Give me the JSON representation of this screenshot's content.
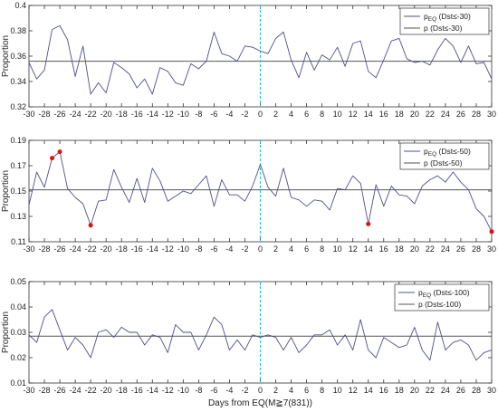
{
  "chart_data": [
    {
      "type": "line",
      "ylabel": "Proportion",
      "xlabel": "",
      "xlim": [
        -30,
        30
      ],
      "ylim": [
        0.32,
        0.4
      ],
      "yticks": [
        0.32,
        0.34,
        0.36,
        0.38,
        0.4
      ],
      "ytick_labels": [
        "0.32",
        "0.34",
        "0.36",
        "0.38",
        "0.4"
      ],
      "xticks": [
        -30,
        -28,
        -26,
        -24,
        -22,
        -20,
        -18,
        -16,
        -14,
        -12,
        -10,
        -8,
        -6,
        -4,
        -2,
        0,
        2,
        4,
        6,
        8,
        10,
        12,
        14,
        16,
        18,
        20,
        22,
        24,
        26,
        28,
        30
      ],
      "xtick_labels": [
        "-30",
        "-28",
        "-26",
        "-24",
        "-22",
        "-20",
        "-18",
        "-16",
        "-14",
        "-12",
        "-10",
        "-8",
        "-6",
        "-4",
        "-2",
        "0",
        "2",
        "4",
        "6",
        "8",
        "10",
        "12",
        "14",
        "16",
        "18",
        "20",
        "22",
        "24",
        "26",
        "28",
        "30"
      ],
      "legend_position": "top-right",
      "legend": [
        {
          "main": "p",
          "sub": "EQ",
          "rest": " (Dst≤-30)"
        },
        {
          "main": "p",
          "sub": "",
          "rest": " (Dst≤-30)"
        }
      ],
      "baseline": 0.356,
      "vline_x": 0,
      "x": [
        -30,
        -29,
        -28,
        -27,
        -26,
        -25,
        -24,
        -23,
        -22,
        -21,
        -20,
        -19,
        -18,
        -17,
        -16,
        -15,
        -14,
        -13,
        -12,
        -11,
        -10,
        -9,
        -8,
        -7,
        -6,
        -5,
        -4,
        -3,
        -2,
        -1,
        0,
        1,
        2,
        3,
        4,
        5,
        6,
        7,
        8,
        9,
        10,
        11,
        12,
        13,
        14,
        15,
        16,
        17,
        18,
        19,
        20,
        21,
        22,
        23,
        24,
        25,
        26,
        27,
        28,
        29,
        30
      ],
      "series": [
        {
          "values": [
            0.355,
            0.342,
            0.349,
            0.381,
            0.384,
            0.373,
            0.344,
            0.368,
            0.33,
            0.339,
            0.331,
            0.355,
            0.351,
            0.346,
            0.335,
            0.342,
            0.33,
            0.351,
            0.348,
            0.339,
            0.337,
            0.354,
            0.35,
            0.356,
            0.379,
            0.362,
            0.36,
            0.356,
            0.368,
            0.367,
            0.364,
            0.362,
            0.374,
            0.379,
            0.357,
            0.343,
            0.363,
            0.349,
            0.361,
            0.357,
            0.367,
            0.352,
            0.37,
            0.372,
            0.348,
            0.343,
            0.357,
            0.372,
            0.374,
            0.358,
            0.355,
            0.356,
            0.353,
            0.365,
            0.374,
            0.368,
            0.355,
            0.368,
            0.354,
            0.355,
            0.342
          ]
        }
      ],
      "highlight_points": []
    },
    {
      "type": "line",
      "ylabel": "Proportion",
      "xlabel": "",
      "xlim": [
        -30,
        30
      ],
      "ylim": [
        0.11,
        0.19
      ],
      "yticks": [
        0.11,
        0.13,
        0.15,
        0.17,
        0.19
      ],
      "ytick_labels": [
        "0.11",
        "0.13",
        "0.15",
        "0.17",
        "0.19"
      ],
      "xticks": [
        -30,
        -28,
        -26,
        -24,
        -22,
        -20,
        -18,
        -16,
        -14,
        -12,
        -10,
        -8,
        -6,
        -4,
        -2,
        0,
        2,
        4,
        6,
        8,
        10,
        12,
        14,
        16,
        18,
        20,
        22,
        24,
        26,
        28,
        30
      ],
      "xtick_labels": [
        "-30",
        "-28",
        "-26",
        "-24",
        "-22",
        "-20",
        "-18",
        "-16",
        "-14",
        "-12",
        "-10",
        "-8",
        "-6",
        "-4",
        "-2",
        "0",
        "2",
        "4",
        "6",
        "8",
        "10",
        "12",
        "14",
        "16",
        "18",
        "20",
        "22",
        "24",
        "26",
        "28",
        "30"
      ],
      "legend_position": "top-right",
      "legend": [
        {
          "main": "p",
          "sub": "EQ",
          "rest": " (Dst≤-50)"
        },
        {
          "main": "p",
          "sub": "",
          "rest": " (Dst≤-50)"
        }
      ],
      "baseline": 0.151,
      "vline_x": 0,
      "x": [
        -30,
        -29,
        -28,
        -27,
        -26,
        -25,
        -24,
        -23,
        -22,
        -21,
        -20,
        -19,
        -18,
        -17,
        -16,
        -15,
        -14,
        -13,
        -12,
        -11,
        -10,
        -9,
        -8,
        -7,
        -6,
        -5,
        -4,
        -3,
        -2,
        -1,
        0,
        1,
        2,
        3,
        4,
        5,
        6,
        7,
        8,
        9,
        10,
        11,
        12,
        13,
        14,
        15,
        16,
        17,
        18,
        19,
        20,
        21,
        22,
        23,
        24,
        25,
        26,
        27,
        28,
        29,
        30
      ],
      "series": [
        {
          "values": [
            0.139,
            0.165,
            0.153,
            0.176,
            0.181,
            0.152,
            0.145,
            0.14,
            0.123,
            0.142,
            0.143,
            0.167,
            0.153,
            0.141,
            0.16,
            0.141,
            0.168,
            0.158,
            0.142,
            0.146,
            0.15,
            0.148,
            0.155,
            0.162,
            0.138,
            0.159,
            0.147,
            0.147,
            0.142,
            0.154,
            0.171,
            0.153,
            0.146,
            0.168,
            0.145,
            0.143,
            0.138,
            0.143,
            0.142,
            0.135,
            0.152,
            0.151,
            0.162,
            0.156,
            0.124,
            0.155,
            0.138,
            0.154,
            0.147,
            0.146,
            0.14,
            0.154,
            0.159,
            0.162,
            0.157,
            0.165,
            0.157,
            0.151,
            0.136,
            0.13,
            0.118
          ]
        }
      ],
      "highlight_points": [
        [
          -27,
          0.176
        ],
        [
          -26,
          0.181
        ],
        [
          -22,
          0.123
        ],
        [
          14,
          0.124
        ],
        [
          30,
          0.118
        ]
      ]
    },
    {
      "type": "line",
      "ylabel": "Proportion",
      "xlabel": "Days from EQ(M≧7(831))",
      "xlim": [
        -30,
        30
      ],
      "ylim": [
        0.01,
        0.05
      ],
      "yticks": [
        0.01,
        0.02,
        0.03,
        0.04,
        0.05
      ],
      "ytick_labels": [
        "0.01",
        "0.02",
        "0.03",
        "0.04",
        "0.05"
      ],
      "xticks": [
        -30,
        -28,
        -26,
        -24,
        -22,
        -20,
        -18,
        -16,
        -14,
        -12,
        -10,
        -8,
        -6,
        -4,
        -2,
        0,
        2,
        4,
        6,
        8,
        10,
        12,
        14,
        16,
        18,
        20,
        22,
        24,
        26,
        28,
        30
      ],
      "xtick_labels": [
        "-30",
        "-28",
        "-26",
        "-24",
        "-22",
        "-20",
        "-18",
        "-16",
        "-14",
        "-12",
        "-10",
        "-8",
        "-6",
        "-4",
        "-2",
        "0",
        "2",
        "4",
        "6",
        "8",
        "10",
        "12",
        "14",
        "16",
        "18",
        "20",
        "22",
        "24",
        "26",
        "28",
        "30"
      ],
      "legend_position": "top-right",
      "legend": [
        {
          "main": "p",
          "sub": "EQ",
          "rest": " (Dst≤-100)"
        },
        {
          "main": "p",
          "sub": "",
          "rest": " (Dst≤-100)"
        }
      ],
      "baseline": 0.0285,
      "vline_x": 0,
      "x": [
        -30,
        -29,
        -28,
        -27,
        -26,
        -25,
        -24,
        -23,
        -22,
        -21,
        -20,
        -19,
        -18,
        -17,
        -16,
        -15,
        -14,
        -13,
        -12,
        -11,
        -10,
        -9,
        -8,
        -7,
        -6,
        -5,
        -4,
        -3,
        -2,
        -1,
        0,
        1,
        2,
        3,
        4,
        5,
        6,
        7,
        8,
        9,
        10,
        11,
        12,
        13,
        14,
        15,
        16,
        17,
        18,
        19,
        20,
        21,
        22,
        23,
        24,
        25,
        26,
        27,
        28,
        29,
        30
      ],
      "series": [
        {
          "values": [
            0.029,
            0.026,
            0.036,
            0.039,
            0.031,
            0.023,
            0.028,
            0.025,
            0.02,
            0.03,
            0.031,
            0.028,
            0.032,
            0.03,
            0.03,
            0.025,
            0.029,
            0.028,
            0.022,
            0.033,
            0.03,
            0.03,
            0.023,
            0.029,
            0.036,
            0.033,
            0.023,
            0.027,
            0.023,
            0.029,
            0.028,
            0.029,
            0.028,
            0.023,
            0.028,
            0.022,
            0.025,
            0.029,
            0.029,
            0.031,
            0.025,
            0.029,
            0.023,
            0.035,
            0.023,
            0.02,
            0.028,
            0.026,
            0.024,
            0.025,
            0.032,
            0.023,
            0.019,
            0.034,
            0.023,
            0.026,
            0.027,
            0.025,
            0.019,
            0.022,
            0.023
          ]
        }
      ],
      "highlight_points": []
    }
  ],
  "colors": {
    "series": "#4f4f8c",
    "baseline": "#555555",
    "vline": "#1ec8d8",
    "highlight": "#dd1111",
    "axis": "#333333"
  }
}
